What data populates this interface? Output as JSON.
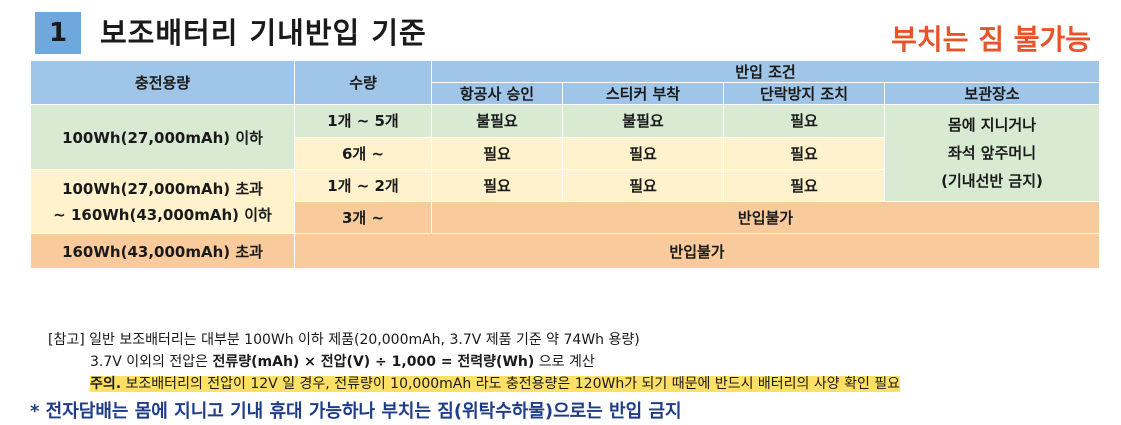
{
  "header": {
    "number": "1",
    "title": "보조배터리 기내반입 기준",
    "right_label": "부치는 짐 불가능"
  },
  "table": {
    "col_capacity": "충전용량",
    "col_quantity": "수량",
    "col_conditions": "반입 조건",
    "sub_airline": "항공사 승인",
    "sub_sticker": "스티커 부착",
    "sub_short": "단락방지 조치",
    "sub_storage": "보관장소",
    "row1_capacity": "100Wh(27,000mAh) 이하",
    "row1a_qty": "1개 ~ 5개",
    "row1a_airline": "불필요",
    "row1a_sticker": "불필요",
    "row1a_short": "필요",
    "row1b_qty": "6개 ~",
    "row1b_airline": "필요",
    "row1b_sticker": "필요",
    "row1b_short": "필요",
    "storage_line1": "몸에 지니거나",
    "storage_line2": "좌석 앞주머니",
    "storage_line3": "(기내선반 금지)",
    "row2_capacity_line1": "100Wh(27,000mAh) 초과",
    "row2_capacity_line2": "~ 160Wh(43,000mAh) 이하",
    "row2a_qty": "1개 ~ 2개",
    "row2a_airline": "필요",
    "row2a_sticker": "필요",
    "row2a_short": "필요",
    "row2b_qty": "3개 ~",
    "row2b_result": "반입불가",
    "row3_capacity": "160Wh(43,000mAh) 초과",
    "row3_result": "반입불가"
  },
  "notes": {
    "note1": "[참고] 일반 보조배터리는 대부분 100Wh 이하 제품(20,000mAh, 3.7V 제품 기준 약 74Wh 용량)",
    "note2_pre": "3.7V 이외의 전압은 ",
    "note2_bold": "전류량(mAh) × 전압(V) ÷ 1,000 = 전력량(Wh)",
    "note2_post": " 으로 계산",
    "note3_bold": "주의.",
    "note3_text": " 보조배터리의 전압이 12V 일 경우, 전류량이 10,000mAh 라도 충전용량은 120Wh가 되기 때문에 반드시 배터리의 사양 확인 필요"
  },
  "bottom_note": "* 전자담배는 몸에 지니고 기내 휴대 가능하나 부치는 짐(위탁수하물)으로는 반입 금지",
  "colors": {
    "header_blue": "#9fc5e8",
    "number_box": "#6fa8dc",
    "green": "#d9ead3",
    "yellow": "#fff2cc",
    "orange": "#f9cb9c",
    "highlight": "#ffe066",
    "accent_red": "#e8542a",
    "bottom_blue": "#1f3c88"
  }
}
